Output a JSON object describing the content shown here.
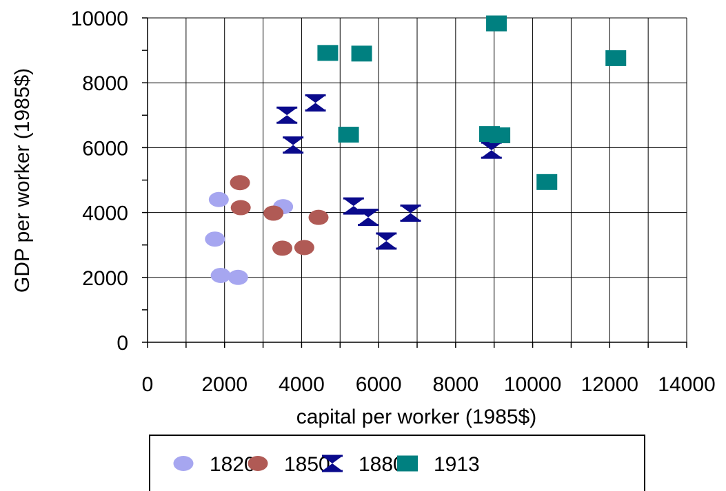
{
  "chart_data": {
    "type": "scatter",
    "xlabel": "capital per worker (1985$)",
    "ylabel": "GDP per worker (1985$)",
    "xlim": [
      0,
      14000
    ],
    "ylim": [
      0,
      10000
    ],
    "x_ticks": [
      0,
      2000,
      4000,
      6000,
      8000,
      10000,
      12000,
      14000
    ],
    "y_ticks": [
      0,
      2000,
      4000,
      6000,
      8000,
      10000
    ],
    "x_tick_labels": [
      "0",
      "2000",
      "4000",
      "6000",
      "8000",
      "10000",
      "12000",
      "14000"
    ],
    "y_tick_labels": [
      "0",
      "2000",
      "4000",
      "6000",
      "8000",
      "10000"
    ],
    "grid": true,
    "legend_position": "bottom",
    "series": [
      {
        "name": "1820",
        "marker": "circle",
        "color": "#a6a6f0",
        "points": [
          [
            1850,
            4400
          ],
          [
            1750,
            3180
          ],
          [
            1900,
            2060
          ],
          [
            2350,
            2000
          ],
          [
            3520,
            4180
          ]
        ]
      },
      {
        "name": "1850",
        "marker": "circle",
        "color": "#b05a55",
        "points": [
          [
            2400,
            4920
          ],
          [
            2420,
            4150
          ],
          [
            3270,
            3980
          ],
          [
            3500,
            2900
          ],
          [
            4070,
            2920
          ],
          [
            4440,
            3850
          ]
        ]
      },
      {
        "name": "1880",
        "marker": "hourglass",
        "color": "#0a0a8c",
        "points": [
          [
            3620,
            7000
          ],
          [
            4360,
            7380
          ],
          [
            3780,
            6080
          ],
          [
            5350,
            4200
          ],
          [
            5730,
            3850
          ],
          [
            6200,
            3120
          ],
          [
            6830,
            3980
          ],
          [
            8930,
            5920
          ]
        ]
      },
      {
        "name": "1913",
        "marker": "square",
        "color": "#008080",
        "points": [
          [
            4680,
            8920
          ],
          [
            5560,
            8900
          ],
          [
            5220,
            6400
          ],
          [
            8880,
            6420
          ],
          [
            9150,
            6380
          ],
          [
            9060,
            9830
          ],
          [
            10370,
            4940
          ],
          [
            12160,
            8760
          ]
        ]
      }
    ]
  }
}
